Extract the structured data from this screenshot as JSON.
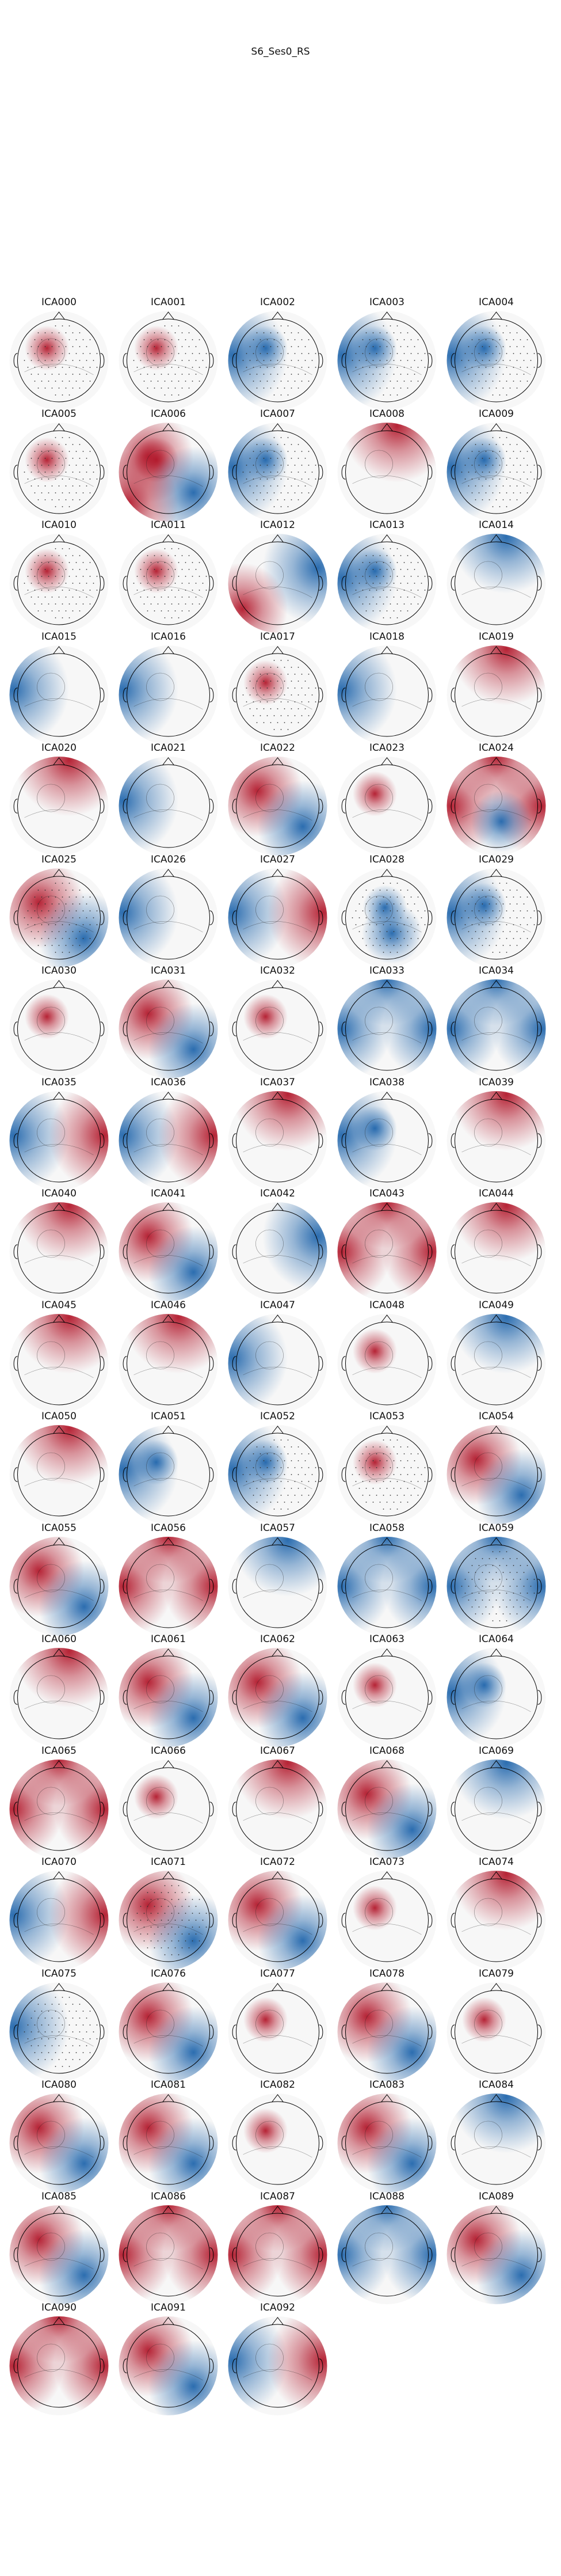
{
  "figure": {
    "title": "S6_Ses0_RS"
  },
  "palette": {
    "red": "#b2182b",
    "blue": "#2166ac",
    "neutral": "#f7f7f7",
    "outline": "#000000"
  },
  "chart_data": {
    "type": "heatmap",
    "title": "S6_Ses0_RS",
    "layout": {
      "columns": 5,
      "rows": 19
    },
    "components": [
      {
        "name": "ICA000",
        "pattern": "focal-red-left",
        "sensors": true
      },
      {
        "name": "ICA001",
        "pattern": "focal-red-left",
        "sensors": true
      },
      {
        "name": "ICA002",
        "pattern": "focal-blue-left",
        "sensors": true
      },
      {
        "name": "ICA003",
        "pattern": "focal-blue-left",
        "sensors": true
      },
      {
        "name": "ICA004",
        "pattern": "focal-blue-left",
        "sensors": true
      },
      {
        "name": "ICA005",
        "pattern": "focal-red-left",
        "sensors": true
      },
      {
        "name": "ICA006",
        "pattern": "focal-red-left diffuse",
        "sensors": false
      },
      {
        "name": "ICA007",
        "pattern": "focal-blue-left",
        "sensors": true
      },
      {
        "name": "ICA008",
        "pattern": "frontal-red",
        "sensors": false
      },
      {
        "name": "ICA009",
        "pattern": "focal-blue-left",
        "sensors": true
      },
      {
        "name": "ICA010",
        "pattern": "focal-red-left",
        "sensors": true
      },
      {
        "name": "ICA011",
        "pattern": "focal-red-left",
        "sensors": true
      },
      {
        "name": "ICA012",
        "pattern": "blue-right red-left-temporal",
        "sensors": false
      },
      {
        "name": "ICA013",
        "pattern": "focal-blue-left",
        "sensors": true
      },
      {
        "name": "ICA014",
        "pattern": "frontal-blue",
        "sensors": false
      },
      {
        "name": "ICA015",
        "pattern": "blue-left",
        "sensors": false
      },
      {
        "name": "ICA016",
        "pattern": "blue-left",
        "sensors": false
      },
      {
        "name": "ICA017",
        "pattern": "focal-red-left",
        "sensors": true
      },
      {
        "name": "ICA018",
        "pattern": "blue-left",
        "sensors": false
      },
      {
        "name": "ICA019",
        "pattern": "frontal-red",
        "sensors": false
      },
      {
        "name": "ICA020",
        "pattern": "frontal-red",
        "sensors": false
      },
      {
        "name": "ICA021",
        "pattern": "blue-left",
        "sensors": false
      },
      {
        "name": "ICA022",
        "pattern": "diffuse",
        "sensors": false
      },
      {
        "name": "ICA023",
        "pattern": "focal-red-left",
        "sensors": false
      },
      {
        "name": "ICA024",
        "pattern": "red-ring blue-center",
        "sensors": false
      },
      {
        "name": "ICA025",
        "pattern": "diffuse",
        "sensors": true
      },
      {
        "name": "ICA026",
        "pattern": "blue-left",
        "sensors": false
      },
      {
        "name": "ICA027",
        "pattern": "blue-left red-right",
        "sensors": false
      },
      {
        "name": "ICA028",
        "pattern": "focal-blue-center",
        "sensors": true
      },
      {
        "name": "ICA029",
        "pattern": "focal-blue-left",
        "sensors": true
      },
      {
        "name": "ICA030",
        "pattern": "focal-red-left",
        "sensors": false
      },
      {
        "name": "ICA031",
        "pattern": "diffuse",
        "sensors": false
      },
      {
        "name": "ICA032",
        "pattern": "focal-red-left",
        "sensors": false
      },
      {
        "name": "ICA033",
        "pattern": "blue-ring",
        "sensors": false
      },
      {
        "name": "ICA034",
        "pattern": "blue-ring",
        "sensors": false
      },
      {
        "name": "ICA035",
        "pattern": "blue-left red-right",
        "sensors": false
      },
      {
        "name": "ICA036",
        "pattern": "blue-left red-right",
        "sensors": false
      },
      {
        "name": "ICA037",
        "pattern": "frontal-red",
        "sensors": false
      },
      {
        "name": "ICA038",
        "pattern": "focal-blue-left",
        "sensors": false
      },
      {
        "name": "ICA039",
        "pattern": "frontal-red",
        "sensors": false
      },
      {
        "name": "ICA040",
        "pattern": "frontal-red",
        "sensors": false
      },
      {
        "name": "ICA041",
        "pattern": "diffuse",
        "sensors": false
      },
      {
        "name": "ICA042",
        "pattern": "blue-right",
        "sensors": false
      },
      {
        "name": "ICA043",
        "pattern": "red-ring",
        "sensors": false
      },
      {
        "name": "ICA044",
        "pattern": "frontal-red",
        "sensors": false
      },
      {
        "name": "ICA045",
        "pattern": "frontal-red",
        "sensors": false
      },
      {
        "name": "ICA046",
        "pattern": "frontal-red",
        "sensors": false
      },
      {
        "name": "ICA047",
        "pattern": "blue-left",
        "sensors": false
      },
      {
        "name": "ICA048",
        "pattern": "focal-red-left",
        "sensors": false
      },
      {
        "name": "ICA049",
        "pattern": "frontal-blue",
        "sensors": false
      },
      {
        "name": "ICA050",
        "pattern": "frontal-red",
        "sensors": false
      },
      {
        "name": "ICA051",
        "pattern": "focal-blue-left",
        "sensors": false
      },
      {
        "name": "ICA052",
        "pattern": "focal-blue-left",
        "sensors": true
      },
      {
        "name": "ICA053",
        "pattern": "focal-red-left",
        "sensors": true
      },
      {
        "name": "ICA054",
        "pattern": "diffuse",
        "sensors": false
      },
      {
        "name": "ICA055",
        "pattern": "diffuse",
        "sensors": false
      },
      {
        "name": "ICA056",
        "pattern": "red-ring",
        "sensors": false
      },
      {
        "name": "ICA057",
        "pattern": "frontal-blue",
        "sensors": false
      },
      {
        "name": "ICA058",
        "pattern": "blue-ring",
        "sensors": false
      },
      {
        "name": "ICA059",
        "pattern": "blue-ring",
        "sensors": true
      },
      {
        "name": "ICA060",
        "pattern": "frontal-red",
        "sensors": false
      },
      {
        "name": "ICA061",
        "pattern": "diffuse",
        "sensors": false
      },
      {
        "name": "ICA062",
        "pattern": "diffuse",
        "sensors": false
      },
      {
        "name": "ICA063",
        "pattern": "focal-red-left",
        "sensors": false
      },
      {
        "name": "ICA064",
        "pattern": "focal-blue-left",
        "sensors": false
      },
      {
        "name": "ICA065",
        "pattern": "red-ring",
        "sensors": false
      },
      {
        "name": "ICA066",
        "pattern": "focal-red-left",
        "sensors": false
      },
      {
        "name": "ICA067",
        "pattern": "frontal-red",
        "sensors": false
      },
      {
        "name": "ICA068",
        "pattern": "diffuse",
        "sensors": false
      },
      {
        "name": "ICA069",
        "pattern": "frontal-blue",
        "sensors": false
      },
      {
        "name": "ICA070",
        "pattern": "blue-left red-right",
        "sensors": false
      },
      {
        "name": "ICA071",
        "pattern": "diffuse",
        "sensors": true
      },
      {
        "name": "ICA072",
        "pattern": "diffuse",
        "sensors": false
      },
      {
        "name": "ICA073",
        "pattern": "focal-red-left",
        "sensors": false
      },
      {
        "name": "ICA074",
        "pattern": "frontal-red",
        "sensors": false
      },
      {
        "name": "ICA075",
        "pattern": "blue-left",
        "sensors": true
      },
      {
        "name": "ICA076",
        "pattern": "diffuse",
        "sensors": false
      },
      {
        "name": "ICA077",
        "pattern": "focal-red-left",
        "sensors": false
      },
      {
        "name": "ICA078",
        "pattern": "diffuse",
        "sensors": false
      },
      {
        "name": "ICA079",
        "pattern": "focal-red-left",
        "sensors": false
      },
      {
        "name": "ICA080",
        "pattern": "diffuse",
        "sensors": false
      },
      {
        "name": "ICA081",
        "pattern": "diffuse",
        "sensors": false
      },
      {
        "name": "ICA082",
        "pattern": "focal-red-left",
        "sensors": false
      },
      {
        "name": "ICA083",
        "pattern": "diffuse",
        "sensors": false
      },
      {
        "name": "ICA084",
        "pattern": "frontal-blue",
        "sensors": false
      },
      {
        "name": "ICA085",
        "pattern": "diffuse",
        "sensors": false
      },
      {
        "name": "ICA086",
        "pattern": "red-ring",
        "sensors": false
      },
      {
        "name": "ICA087",
        "pattern": "red-ring",
        "sensors": false
      },
      {
        "name": "ICA088",
        "pattern": "blue-ring",
        "sensors": false
      },
      {
        "name": "ICA089",
        "pattern": "diffuse",
        "sensors": false
      },
      {
        "name": "ICA090",
        "pattern": "red-ring",
        "sensors": false
      },
      {
        "name": "ICA091",
        "pattern": "diffuse",
        "sensors": false
      },
      {
        "name": "ICA092",
        "pattern": "blue-left red-right",
        "sensors": false
      }
    ]
  }
}
